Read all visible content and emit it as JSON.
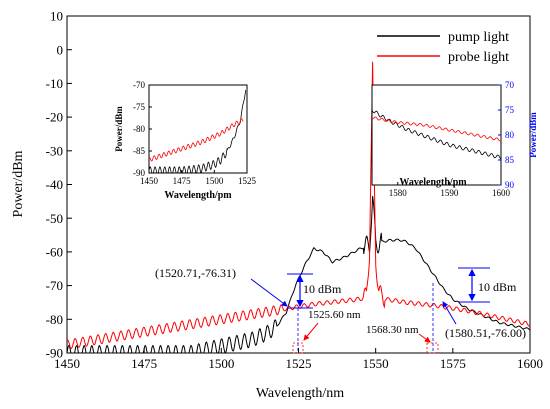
{
  "chart_data": [
    {
      "type": "line",
      "xlabel": "Wavelength/nm",
      "ylabel": "Power/dBm",
      "xlim": [
        1450,
        1600
      ],
      "ylim": [
        -90,
        10
      ],
      "x_ticks": [
        1450,
        1475,
        1500,
        1525,
        1550,
        1575,
        1600
      ],
      "y_ticks": [
        10,
        0,
        -10,
        -20,
        -30,
        -40,
        -50,
        -60,
        -70,
        -80,
        -90
      ],
      "legend_position": "top-right",
      "series": [
        {
          "name": "pump light",
          "color": "#000000",
          "x": [
            1450,
            1475,
            1490,
            1500,
            1505,
            1510,
            1515,
            1518,
            1521,
            1524,
            1527,
            1530,
            1533,
            1536,
            1540,
            1545,
            1548,
            1549,
            1550,
            1552,
            1555,
            1558,
            1560,
            1563,
            1566,
            1569,
            1572,
            1575,
            1580,
            1585,
            1590,
            1595,
            1600
          ],
          "y": [
            -90,
            -90,
            -90,
            -88,
            -87,
            -86,
            -84,
            -82,
            -78,
            -70,
            -64,
            -59,
            -60,
            -63,
            -61.5,
            -59,
            -58,
            -44,
            -57.5,
            -57,
            -56.5,
            -56.5,
            -57,
            -59,
            -63,
            -67,
            -71,
            -74,
            -77,
            -79,
            -81,
            -82,
            -83
          ]
        },
        {
          "name": "probe light",
          "color": "#ff0000",
          "x": [
            1450,
            1460,
            1470,
            1480,
            1490,
            1500,
            1510,
            1520,
            1530,
            1540,
            1545,
            1547,
            1548,
            1549,
            1550,
            1551,
            1553,
            1560,
            1570,
            1580,
            1590,
            1600
          ],
          "y": [
            -87.5,
            -86,
            -84.5,
            -83,
            -81.5,
            -80,
            -78.5,
            -77,
            -75.5,
            -74.5,
            -74,
            -73,
            -60,
            -6,
            -62,
            -72,
            -74,
            -75,
            -76,
            -77.5,
            -79.5,
            -81.5
          ]
        }
      ],
      "annotations": [
        {
          "text": "(1520.71,-76.31)",
          "x": 1520.71,
          "y": -76.31
        },
        {
          "text": "10 dBm"
        },
        {
          "text": "1525.60 nm",
          "x": 1525.6
        },
        {
          "text": "1568.30 nm",
          "x": 1568.3
        },
        {
          "text": "10 dBm"
        },
        {
          "text": "(1580.51,-76.00)",
          "x": 1580.51,
          "y": -76.0
        }
      ]
    },
    {
      "type": "line",
      "xlabel": "Wavelength/pm",
      "ylabel": "Power/dBm",
      "xlim": [
        1450,
        1525
      ],
      "ylim": [
        -90,
        -70
      ],
      "x_ticks": [
        1450,
        1475,
        1500,
        1525
      ],
      "y_ticks": [
        -70,
        -75,
        -80,
        -85,
        -90
      ],
      "series": [
        {
          "name": "pump light",
          "color": "#000000",
          "x": [
            1450,
            1475,
            1490,
            1500,
            1505,
            1510,
            1515,
            1520,
            1524
          ],
          "y": [
            -89.5,
            -89.5,
            -89,
            -88,
            -87,
            -85,
            -82,
            -78,
            -71
          ]
        },
        {
          "name": "probe light",
          "color": "#ff0000",
          "x": [
            1450,
            1470,
            1490,
            1505,
            1515,
            1522
          ],
          "y": [
            -87,
            -85,
            -83,
            -81,
            -79,
            -78
          ]
        }
      ]
    },
    {
      "type": "line",
      "xlabel": "Wavelength/pm",
      "ylabel": "Power/dBm",
      "xlim": [
        1575,
        1600
      ],
      "ylim": [
        90,
        70
      ],
      "x_ticks": [
        1580,
        1590,
        1600
      ],
      "y_ticks": [
        70,
        75,
        80,
        85,
        90
      ],
      "series": [
        {
          "name": "pump light",
          "color": "#000000",
          "x": [
            1575,
            1578,
            1582,
            1586,
            1590,
            1594,
            1598,
            1600
          ],
          "y": [
            75,
            77,
            79,
            80.5,
            82,
            83,
            84,
            84.5
          ]
        },
        {
          "name": "probe light",
          "color": "#ff0000",
          "x": [
            1575,
            1580,
            1585,
            1590,
            1595,
            1600
          ],
          "y": [
            76.5,
            77.5,
            78,
            79,
            80,
            81
          ]
        }
      ]
    }
  ]
}
